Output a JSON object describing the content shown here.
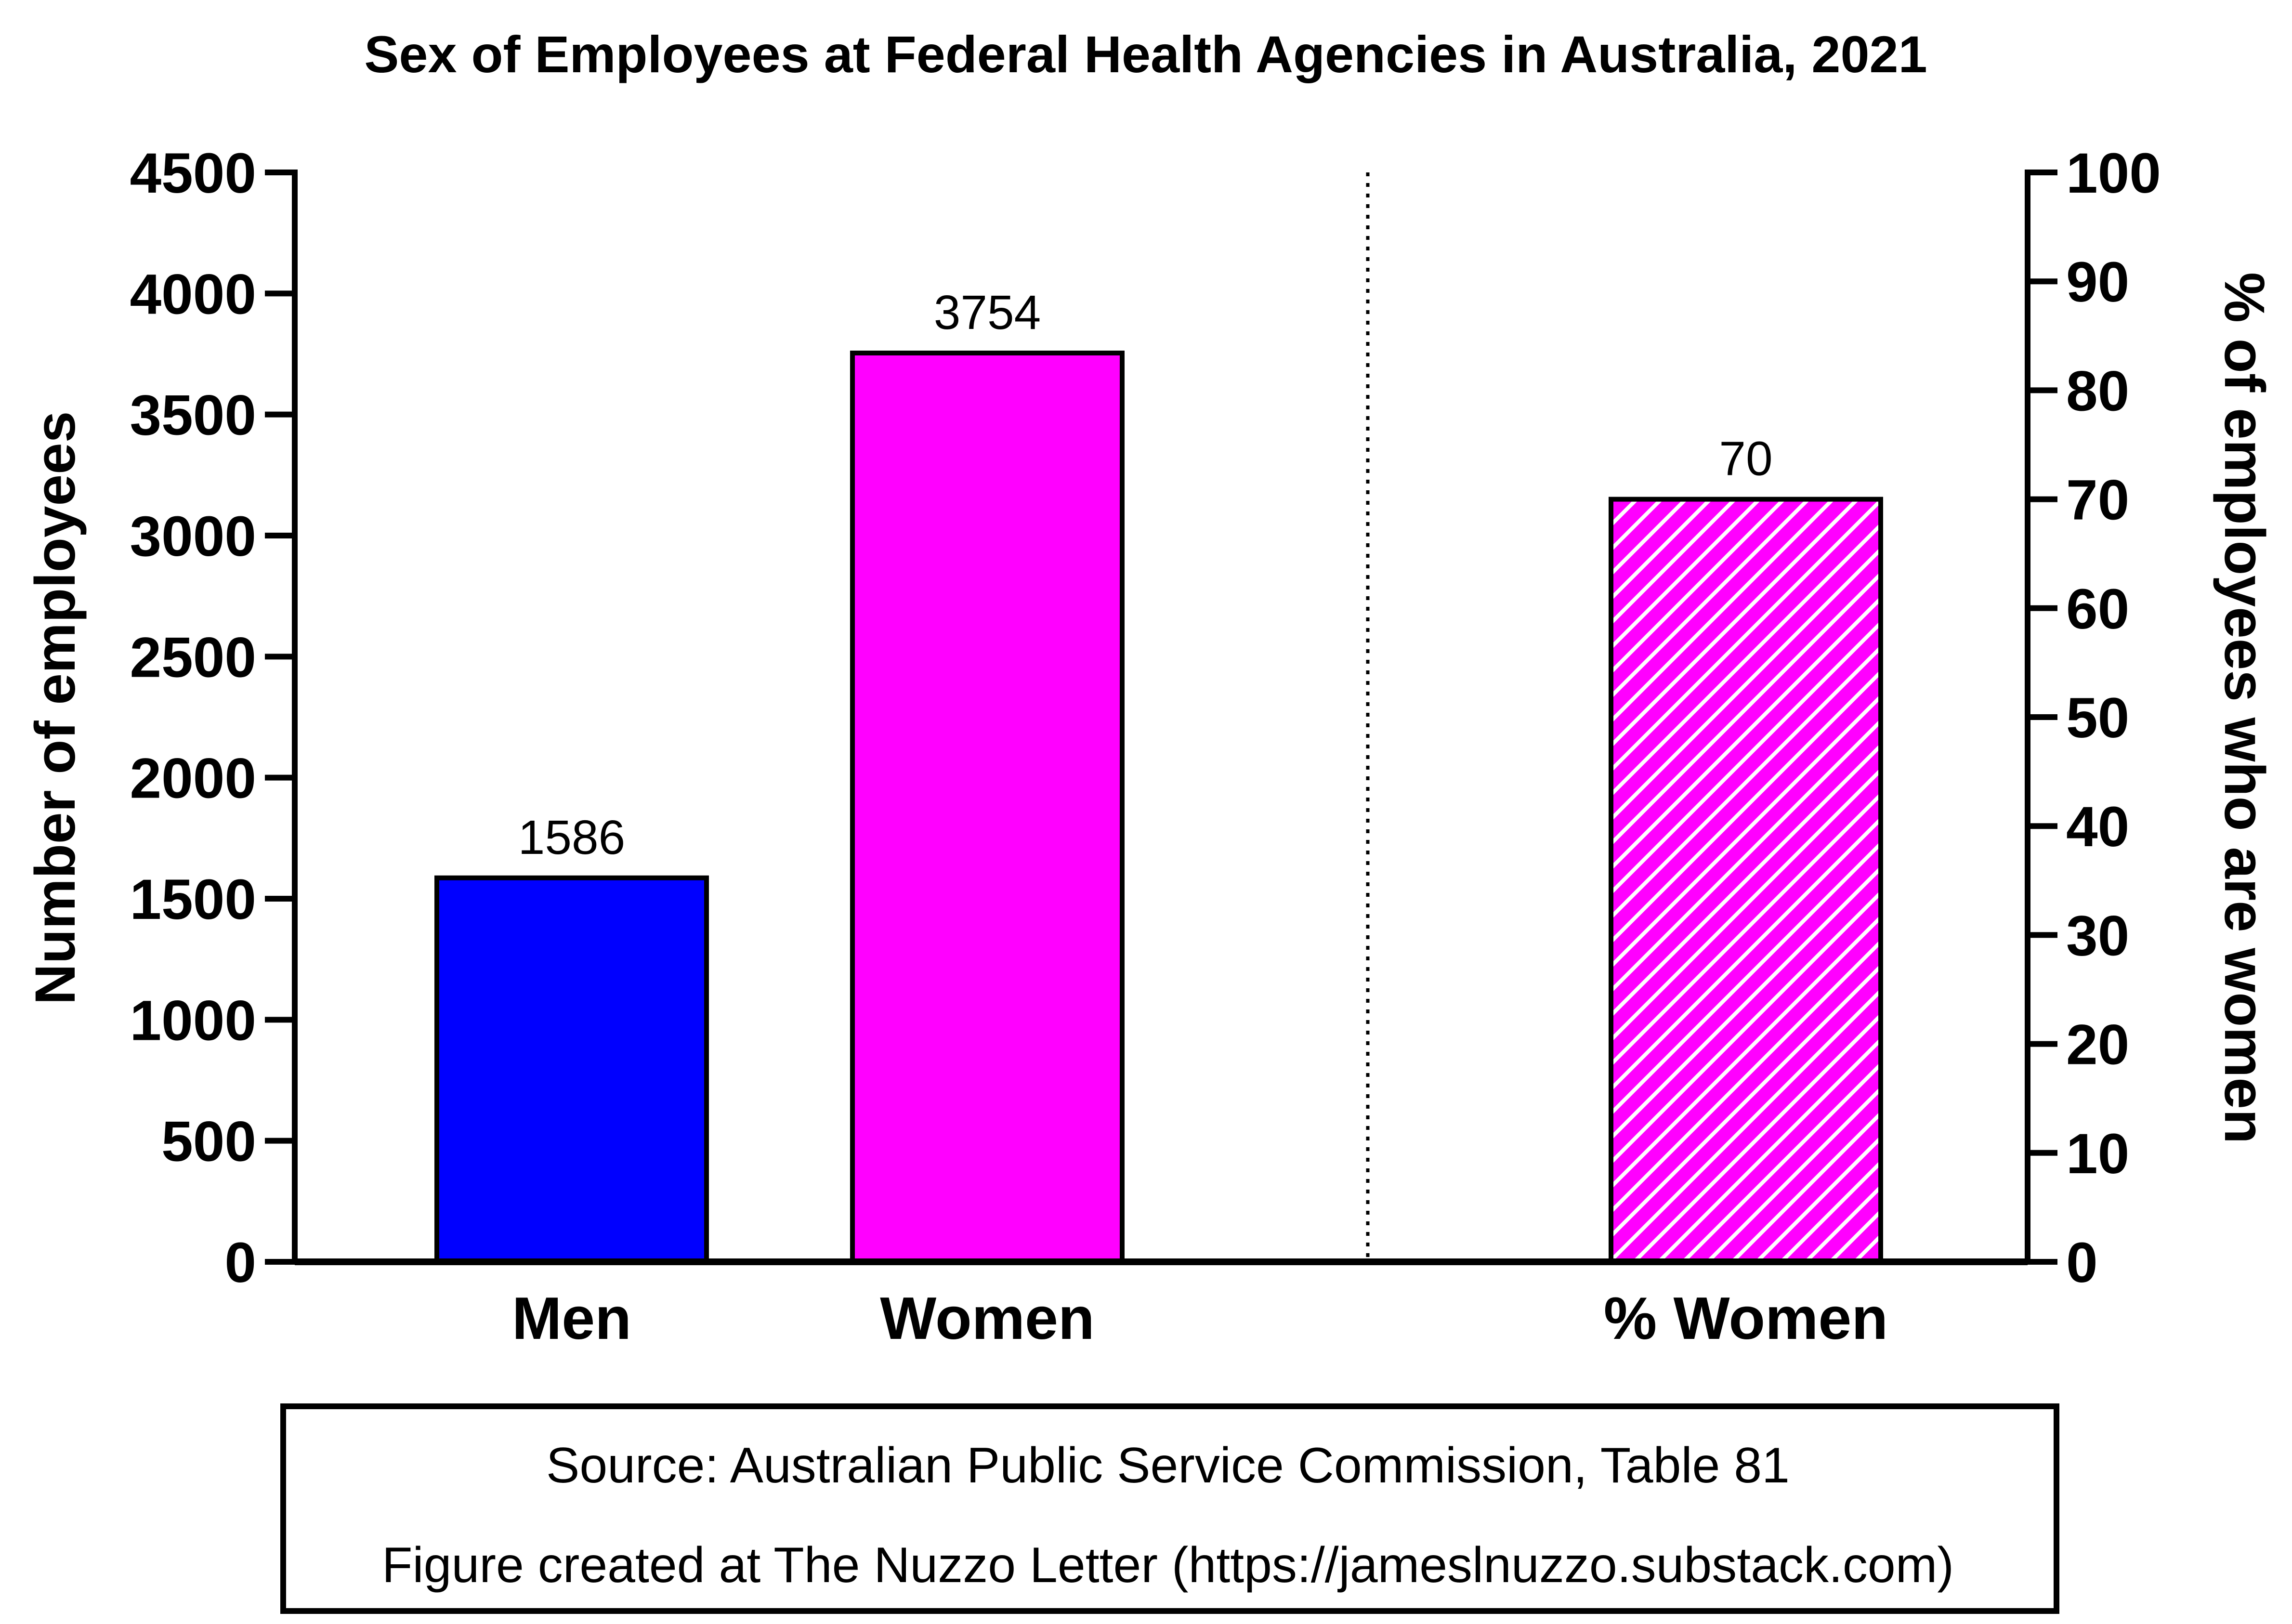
{
  "chart_data": {
    "type": "bar",
    "title": "Sex of Employees at Federal Health Agencies in Australia, 2021",
    "left_axis": {
      "label": "Number of employees",
      "range": [
        0,
        4500
      ],
      "ticks": [
        "0",
        "500",
        "1000",
        "1500",
        "2000",
        "2500",
        "3000",
        "3500",
        "4000",
        "4500"
      ]
    },
    "right_axis": {
      "label": "% of employees who are women",
      "range": [
        0,
        100
      ],
      "ticks": [
        "0",
        "10",
        "20",
        "30",
        "40",
        "50",
        "60",
        "70",
        "80",
        "90",
        "100"
      ]
    },
    "bars": [
      {
        "category": "Men",
        "value": 1586,
        "value_label": "1586",
        "axis": "left",
        "color": "#0000ff",
        "pattern": "solid"
      },
      {
        "category": "Women",
        "value": 3754,
        "value_label": "3754",
        "axis": "left",
        "color": "#ff00ff",
        "pattern": "solid"
      },
      {
        "category": "% Women",
        "value": 70,
        "value_label": "70",
        "axis": "right",
        "color": "#ff00ff",
        "pattern": "hatched"
      }
    ],
    "separator": "dotted vertical line between the count bars and the percentage bar",
    "grid": false
  },
  "source_box": {
    "line1": "Source: Australian Public Service Commission, Table 81",
    "line2": "Figure created at The Nuzzo Letter (https://jameslnuzzo.substack.com)"
  }
}
